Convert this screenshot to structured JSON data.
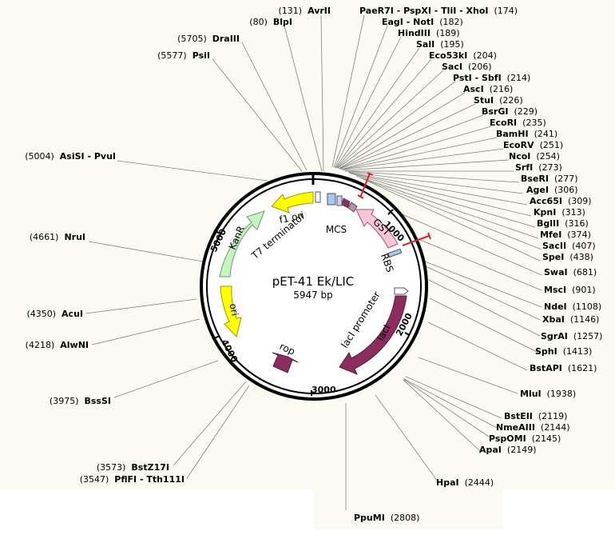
{
  "plasmid": {
    "name": "pET-41 Ek/LIC",
    "size_label": "5947 bp",
    "length": 5947
  },
  "tick_labels": [
    {
      "pos": 1000,
      "text": "1000"
    },
    {
      "pos": 2000,
      "text": "2000"
    },
    {
      "pos": 3000,
      "text": "3000"
    },
    {
      "pos": 4000,
      "text": "4000"
    },
    {
      "pos": 5000,
      "text": "5000"
    }
  ],
  "features": [
    {
      "id": "kanr",
      "label": "KanR",
      "color": "#c7f5c0",
      "stroke": "#6a9a6a"
    },
    {
      "id": "ori",
      "label": "ori",
      "color": "#ffff00",
      "stroke": "#999900"
    },
    {
      "id": "f1ori",
      "label": "f1 ori",
      "color": "#ffff00",
      "stroke": "#999900"
    },
    {
      "id": "laci",
      "label": "lacI",
      "color": "#8b2d5f",
      "stroke": "#5a1a3d"
    },
    {
      "id": "rop",
      "label": "rop",
      "color": "#8b2d5f",
      "stroke": "#5a1a3d"
    },
    {
      "id": "gst",
      "label": "GST",
      "color": "#f0c8d8",
      "stroke": "#c04070"
    }
  ],
  "feature_text": {
    "t7term": "T7 terminator",
    "mcs": "MCS",
    "rbs": "RBS",
    "lacipromoter": "lacI promoter"
  },
  "sites": [
    {
      "id": "avrii",
      "name": "AvrII",
      "pos": "(131)"
    },
    {
      "id": "blpi",
      "name": "BlpI",
      "pos": "(80)"
    },
    {
      "id": "draiii",
      "name": "DraIII",
      "pos": "(5705)"
    },
    {
      "id": "psii",
      "name": "PsiI",
      "pos": "(5577)"
    },
    {
      "id": "asisi",
      "name": "AsiSI - PvuI",
      "pos": "(5004)"
    },
    {
      "id": "nrui",
      "name": "NruI",
      "pos": "(4661)"
    },
    {
      "id": "acui",
      "name": "AcuI",
      "pos": "(4350)"
    },
    {
      "id": "alwni",
      "name": "AlwNI",
      "pos": "(4218)"
    },
    {
      "id": "bsssi",
      "name": "BssSI",
      "pos": "(3975)"
    },
    {
      "id": "bstz17i",
      "name": "BstZ17I",
      "pos": "(3573)"
    },
    {
      "id": "pflfi",
      "name": "PflFI - Tth111I",
      "pos": "(3547)"
    },
    {
      "id": "ppumi",
      "name": "PpuMI",
      "pos": "(2808)"
    },
    {
      "id": "paer7i",
      "name": "PaeR7I - PspXI - TliI - XhoI",
      "pos": "(174)"
    },
    {
      "id": "eagi",
      "name": "EagI - NotI",
      "pos": "(182)"
    },
    {
      "id": "hindiii",
      "name": "HindIII",
      "pos": "(189)"
    },
    {
      "id": "sali",
      "name": "SalI",
      "pos": "(195)"
    },
    {
      "id": "eco53ki",
      "name": "Eco53kI",
      "pos": "(204)"
    },
    {
      "id": "saci",
      "name": "SacI",
      "pos": "(206)"
    },
    {
      "id": "psti",
      "name": "PstI - SbfI",
      "pos": "(214)"
    },
    {
      "id": "asci",
      "name": "AscI",
      "pos": "(216)"
    },
    {
      "id": "stui",
      "name": "StuI",
      "pos": "(226)"
    },
    {
      "id": "bsrgi",
      "name": "BsrGI",
      "pos": "(229)"
    },
    {
      "id": "ecori",
      "name": "EcoRI",
      "pos": "(235)"
    },
    {
      "id": "bamhi",
      "name": "BamHI",
      "pos": "(241)"
    },
    {
      "id": "ecorv",
      "name": "EcoRV",
      "pos": "(251)"
    },
    {
      "id": "ncoi",
      "name": "NcoI",
      "pos": "(254)"
    },
    {
      "id": "srfi",
      "name": "SrfI",
      "pos": "(273)"
    },
    {
      "id": "bseri",
      "name": "BseRI",
      "pos": "(277)"
    },
    {
      "id": "agei",
      "name": "AgeI",
      "pos": "(306)"
    },
    {
      "id": "acc65i",
      "name": "Acc65I",
      "pos": "(309)"
    },
    {
      "id": "kpni",
      "name": "KpnI",
      "pos": "(313)"
    },
    {
      "id": "bglii",
      "name": "BglII",
      "pos": "(316)"
    },
    {
      "id": "mfei",
      "name": "MfeI",
      "pos": "(374)"
    },
    {
      "id": "sacii",
      "name": "SacII",
      "pos": "(407)"
    },
    {
      "id": "spei",
      "name": "SpeI",
      "pos": "(438)"
    },
    {
      "id": "swai",
      "name": "SwaI",
      "pos": "(681)"
    },
    {
      "id": "msci",
      "name": "MscI",
      "pos": "(901)"
    },
    {
      "id": "ndei",
      "name": "NdeI",
      "pos": "(1108)"
    },
    {
      "id": "xbai",
      "name": "XbaI",
      "pos": "(1146)"
    },
    {
      "id": "sgrai",
      "name": "SgrAI",
      "pos": "(1257)"
    },
    {
      "id": "sphi",
      "name": "SphI",
      "pos": "(1413)"
    },
    {
      "id": "bstapi",
      "name": "BstAPI",
      "pos": "(1621)"
    },
    {
      "id": "mlui",
      "name": "MluI",
      "pos": "(1938)"
    },
    {
      "id": "bsteii",
      "name": "BstEII",
      "pos": "(2119)"
    },
    {
      "id": "nmeaiii",
      "name": "NmeAIII",
      "pos": "(2144)"
    },
    {
      "id": "pspomi",
      "name": "PspOMI",
      "pos": "(2145)"
    },
    {
      "id": "apai",
      "name": "ApaI",
      "pos": "(2149)"
    },
    {
      "id": "hpai",
      "name": "HpaI",
      "pos": "(2444)"
    }
  ]
}
